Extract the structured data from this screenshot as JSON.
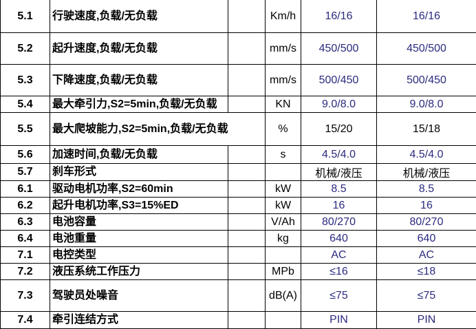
{
  "colors": {
    "value_blue": "#2b2a7e",
    "text": "#000000",
    "border": "#000000"
  },
  "rows": [
    {
      "no": "5.1",
      "desc": "行驶速度,负载/无负载",
      "unit": "Km/h",
      "v1": "16/16",
      "v2": "16/16",
      "blue": true
    },
    {
      "no": "5.2",
      "desc": "起升速度,负载/无负载",
      "unit": "mm/s",
      "v1": "450/500",
      "v2": "450/500",
      "blue": true
    },
    {
      "no": "5.3",
      "desc": "下降速度,负载/无负载",
      "unit": "mm/s",
      "v1": "500/450",
      "v2": "500/450",
      "blue": true
    },
    {
      "no": "5.4",
      "desc": "最大牵引力,S2=5min,负载/无负载",
      "unit": "KN",
      "v1": "9.0/8.0",
      "v2": "9.0/8.0",
      "blue": true
    },
    {
      "no": "5.5",
      "desc": "最大爬坡能力,S2=5min,负载/无负载",
      "unit": "%",
      "v1": "15/20",
      "v2": "15/18",
      "blue": false
    },
    {
      "no": "5.6",
      "desc": "加速时间,负载/无负载",
      "unit": "s",
      "v1": "4.5/4.0",
      "v2": "4.5/4.0",
      "blue": true
    },
    {
      "no": "5.7",
      "desc": "刹车形式",
      "unit": "",
      "v1": "机械/液压",
      "v2": "机械/液压",
      "blue": false
    },
    {
      "no": "6.1",
      "desc": "驱动电机功率,S2=60min",
      "unit": "kW",
      "v1": "8.5",
      "v2": "8.5",
      "blue": true
    },
    {
      "no": "6.2",
      "desc": "起升电机功率,S3=15%ED",
      "unit": "kW",
      "v1": "16",
      "v2": "16",
      "blue": true
    },
    {
      "no": "6.3",
      "desc": "电池容量",
      "unit": "V/Ah",
      "v1": "80/270",
      "v2": "80/270",
      "blue": true
    },
    {
      "no": "6.4",
      "desc": "电池重量",
      "unit": "kg",
      "v1": "640",
      "v2": "640",
      "blue": true
    },
    {
      "no": "7.1",
      "desc": "电控类型",
      "unit": "",
      "v1": "AC",
      "v2": "AC",
      "blue": true
    },
    {
      "no": "7.2",
      "desc": "液压系统工作压力",
      "unit": "MPb",
      "v1": "≤16",
      "v2": "≤18",
      "blue": true
    },
    {
      "no": "7.3",
      "desc": "驾驶员处噪音",
      "unit": "dB(A)",
      "v1": "≤75",
      "v2": "≤75",
      "blue": true
    },
    {
      "no": "7.4",
      "desc": "牵引连结方式",
      "unit": "",
      "v1": "PIN",
      "v2": "PIN",
      "blue": true
    }
  ]
}
